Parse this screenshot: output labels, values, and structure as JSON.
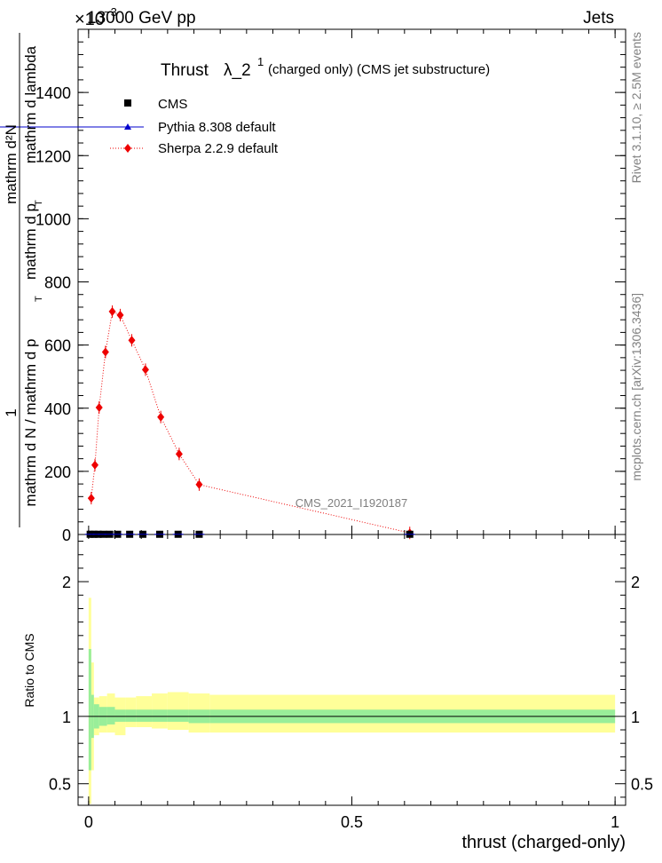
{
  "header": {
    "energy": "13000 GeV pp",
    "process": "Jets",
    "exponent_label": "×10",
    "exponent_power": "−3"
  },
  "title": {
    "main": "Thrust",
    "lambda": "λ_2",
    "superscript": "1",
    "detail": "(charged only) (CMS jet substructure)"
  },
  "side_labels": {
    "rivet": "Rivet 3.1.10, ≥ 2.5M events",
    "mcplots": "mcplots.cern.ch [arXiv:1306.3436]"
  },
  "watermark": "CMS_2021_I1920187",
  "ylabel_top": {
    "numerator": "mathrm d²N",
    "denominator_part1": "mathrm d p",
    "denominator_sub1": "T",
    "denominator_part2": " mathrm d lambda",
    "prefix_num": "1",
    "prefix_den": "mathrm d N / mathrm d p",
    "prefix_sub": "T",
    "line3": "mathrm d lambda"
  },
  "ylabel_ratio": "Ratio to CMS",
  "xlabel": "thrust (charged-only)",
  "legend": [
    {
      "label": "CMS",
      "color": "#000000"
    },
    {
      "label": "Pythia 8.308 default",
      "color": "#0000cc"
    },
    {
      "label": "Sherpa 2.2.9 default",
      "color": "#ee0000"
    }
  ],
  "chart_data": {
    "type": "line",
    "x_ticks": [
      "0",
      "0.5",
      "1"
    ],
    "top_y_ticks": [
      "0",
      "200",
      "400",
      "600",
      "800",
      "1000",
      "1200",
      "1400"
    ],
    "top_ylim": [
      0,
      1600
    ],
    "xlim": [
      -0.02,
      1.02
    ],
    "ratio_y_ticks": [
      "0.5",
      "1",
      "2"
    ],
    "ratio_ylim": [
      0.34,
      2.35
    ],
    "series": [
      {
        "name": "Sherpa 2.2.9 default",
        "color": "#ee0000",
        "x": [
          0.005,
          0.012,
          0.02,
          0.032,
          0.045,
          0.06,
          0.082,
          0.108,
          0.137,
          0.172,
          0.21,
          0.61
        ],
        "y": [
          115,
          220,
          402,
          578,
          706,
          695,
          615,
          522,
          372,
          255,
          158,
          5
        ]
      },
      {
        "name": "CMS",
        "color": "#000000",
        "x": [
          0.003,
          0.01,
          0.018,
          0.028,
          0.04,
          0.055,
          0.078,
          0.103,
          0.135,
          0.17,
          0.21,
          0.61
        ],
        "y": [
          0.7,
          0.7,
          0.7,
          0.7,
          0.7,
          0.7,
          0.7,
          0.7,
          0.7,
          0.7,
          0.7,
          0.7
        ]
      }
    ],
    "ratio_bands": {
      "edges": [
        0.0,
        0.005,
        0.01,
        0.02,
        0.035,
        0.05,
        0.07,
        0.09,
        0.12,
        0.15,
        0.19,
        0.23,
        1.0
      ],
      "inner_lo": [
        0.6,
        0.84,
        0.91,
        0.93,
        0.94,
        0.96,
        0.96,
        0.96,
        0.96,
        0.96,
        0.95,
        0.95
      ],
      "inner_hi": [
        1.5,
        1.16,
        1.09,
        1.07,
        1.07,
        1.05,
        1.05,
        1.05,
        1.05,
        1.05,
        1.05,
        1.05
      ],
      "outer_lo": [
        0.35,
        0.6,
        0.86,
        0.88,
        0.88,
        0.86,
        0.92,
        0.92,
        0.91,
        0.9,
        0.88,
        0.88
      ],
      "outer_hi": [
        1.88,
        1.4,
        1.14,
        1.15,
        1.17,
        1.14,
        1.14,
        1.15,
        1.17,
        1.18,
        1.17,
        1.16
      ]
    }
  }
}
